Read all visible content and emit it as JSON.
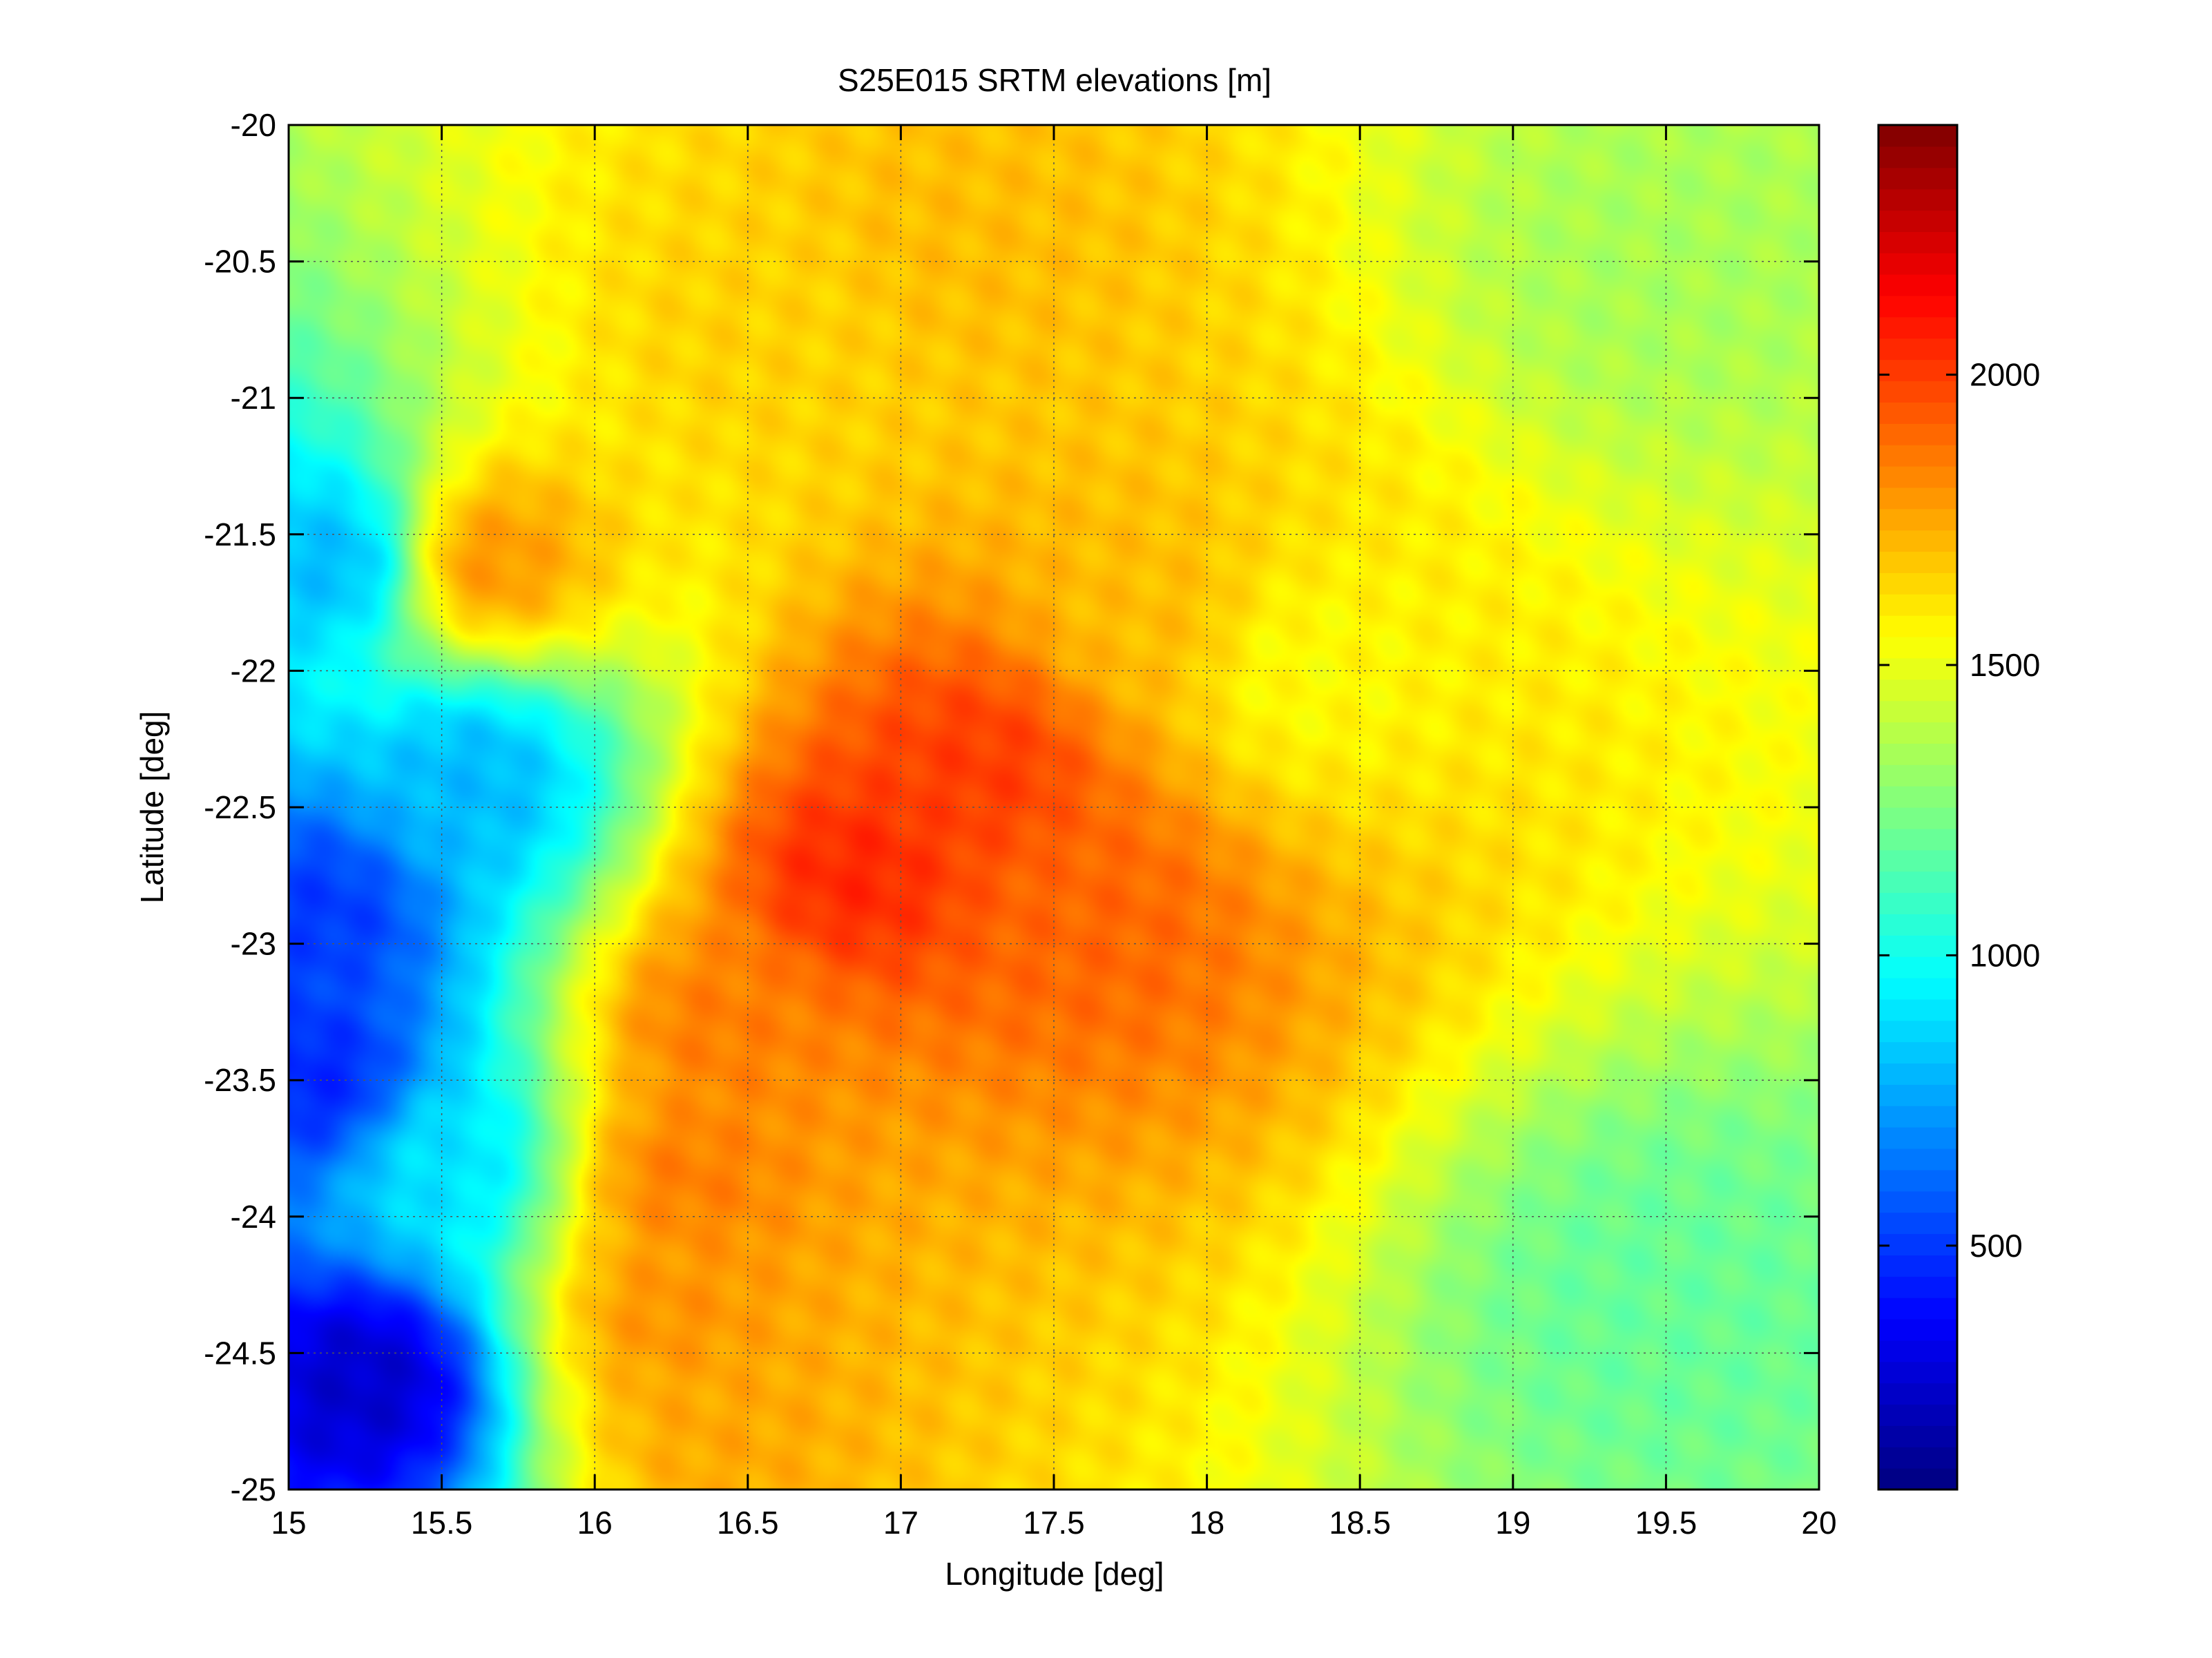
{
  "chart_data": {
    "type": "heatmap",
    "title": "S25E015 SRTM elevations [m]",
    "xlabel": "Longitude [deg]",
    "ylabel": "Latitude [deg]",
    "xlim": [
      15,
      20
    ],
    "ylim": [
      -25,
      -20
    ],
    "xticks": [
      "15",
      "15.5",
      "16",
      "16.5",
      "17",
      "17.5",
      "18",
      "18.5",
      "19",
      "19.5",
      "20"
    ],
    "yticks": [
      "-20",
      "-20.5",
      "-21",
      "-21.5",
      "-22",
      "-22.5",
      "-23",
      "-23.5",
      "-24",
      "-24.5",
      "-25"
    ],
    "grid": true,
    "colormap": "jet",
    "colorbar": {
      "range": [
        80,
        2430
      ],
      "ticks": [
        "500",
        "1000",
        "1500",
        "2000"
      ],
      "tick_values": [
        500,
        1000,
        1500,
        2000
      ]
    },
    "features": [
      {
        "lon": 15.25,
        "lat": -24.6,
        "elev": 250
      },
      {
        "lon": 15.1,
        "lat": -22.9,
        "elev": 500
      },
      {
        "lon": 15.1,
        "lat": -23.5,
        "elev": 450
      },
      {
        "lon": 15.15,
        "lat": -21.6,
        "elev": 800
      },
      {
        "lon": 15.6,
        "lat": -22.4,
        "elev": 800
      },
      {
        "lon": 15.5,
        "lat": -23.8,
        "elev": 900
      },
      {
        "lon": 16.85,
        "lat": -22.75,
        "elev": 2050
      },
      {
        "lon": 17.25,
        "lat": -22.35,
        "elev": 2000
      },
      {
        "lon": 17.8,
        "lat": -21.8,
        "elev": 1700
      },
      {
        "lon": 16.4,
        "lat": -23.3,
        "elev": 1850
      },
      {
        "lon": 16.3,
        "lat": -23.85,
        "elev": 1850
      },
      {
        "lon": 16.25,
        "lat": -24.35,
        "elev": 1800
      },
      {
        "lon": 16.4,
        "lat": -24.75,
        "elev": 1750
      },
      {
        "lon": 17.2,
        "lat": -20.4,
        "elev": 1700
      },
      {
        "lon": 16.55,
        "lat": -20.75,
        "elev": 1650
      },
      {
        "lon": 15.65,
        "lat": -21.6,
        "elev": 1800
      },
      {
        "lon": 17.6,
        "lat": -22.9,
        "elev": 1900
      },
      {
        "lon": 18.3,
        "lat": -22.0,
        "elev": 1550
      },
      {
        "lon": 19.5,
        "lat": -24.3,
        "elev": 1200
      },
      {
        "lon": 19.5,
        "lat": -20.5,
        "elev": 1350
      }
    ]
  }
}
